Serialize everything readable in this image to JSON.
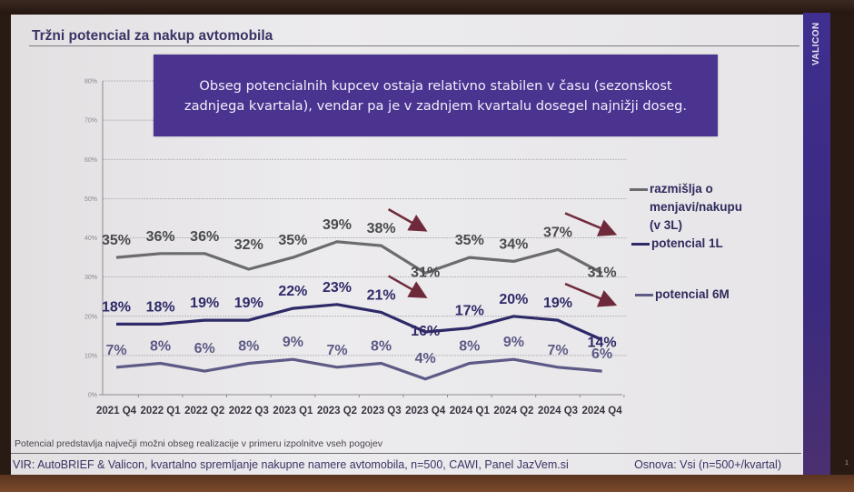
{
  "slide": {
    "title": "Tržni potencial za nakup avtomobila",
    "brand": "VALICON",
    "callout_line1": "Obseg potencialnih kupcev ostaja relativno stabilen v času (sezonskost",
    "callout_line2": "zadnjega kvartala), vendar pa je v zadnjem kvartalu dosegel najnižji doseg.",
    "footnote": "Potencial predstavlja največji možni obseg realizacije v primeru izpolnitve vseh pogojev",
    "source": "VIR: AutoBRIEF & Valicon, kvartalno spremljanje nakupne namere avtomobila, n=500, CAWI, Panel JazVem.si",
    "basis": "Osnova: Vsi (n=500+/kvartal)",
    "page_number": "1",
    "colors": {
      "callout_bg": "#4b3490",
      "brand_bar": "#3f2f8f",
      "title": "#3a3365",
      "arrow": "#6e2a3a"
    }
  },
  "chart_data": {
    "type": "line",
    "title": "Tržni potencial za nakup avtomobila",
    "xlabel": "",
    "ylabel": "",
    "ylim": [
      0,
      80
    ],
    "yticks": [
      "0%",
      "10%",
      "20%",
      "30%",
      "40%",
      "50%",
      "60%",
      "70%",
      "80%"
    ],
    "grid": true,
    "legend_position": "right",
    "categories": [
      "2021 Q4",
      "2022 Q1",
      "2022 Q2",
      "2022 Q3",
      "2023 Q1",
      "2023 Q2",
      "2023 Q3",
      "2023 Q4",
      "2024 Q1",
      "2024 Q2",
      "2024 Q3",
      "2024 Q4"
    ],
    "series": [
      {
        "name": "razmišlja o menjavi/nakupu (v 3L)",
        "legend_lines": [
          "razmišlja o",
          "menjavi/nakupu",
          "(v 3L)"
        ],
        "color": "#6b6b6e",
        "values": [
          35,
          36,
          36,
          32,
          35,
          39,
          38,
          31,
          35,
          34,
          37,
          31
        ],
        "labels": [
          "35%",
          "36%",
          "36%",
          "32%",
          "35%",
          "39%",
          "38%",
          "31%",
          "35%",
          "34%",
          "37%",
          "31%"
        ]
      },
      {
        "name": "potencial 1L",
        "legend_lines": [
          "potencial 1L"
        ],
        "color": "#2e2a68",
        "values": [
          18,
          18,
          19,
          19,
          22,
          23,
          21,
          16,
          17,
          20,
          19,
          14
        ],
        "labels": [
          "18%",
          "18%",
          "19%",
          "19%",
          "22%",
          "23%",
          "21%",
          "16%",
          "17%",
          "20%",
          "19%",
          "14%"
        ]
      },
      {
        "name": "potencial 6M",
        "legend_lines": [
          "potencial 6M"
        ],
        "color": "#5d5a86",
        "values": [
          7,
          8,
          6,
          8,
          9,
          7,
          8,
          4,
          8,
          9,
          7,
          6
        ],
        "labels": [
          "7%",
          "8%",
          "6%",
          "8%",
          "9%",
          "7%",
          "8%",
          "4%",
          "8%",
          "9%",
          "7%",
          "6%"
        ]
      }
    ],
    "annotations": [
      {
        "type": "arrow",
        "from": "2023 Q3",
        "to": "2023 Q4",
        "series": "razmišlja o menjavi/nakupu (v 3L)"
      },
      {
        "type": "arrow",
        "from": "2024 Q3",
        "to": "2024 Q4",
        "series": "razmišlja o menjavi/nakupu (v 3L)"
      },
      {
        "type": "arrow",
        "from": "2023 Q3",
        "to": "2023 Q4",
        "series": "potencial 1L"
      },
      {
        "type": "arrow",
        "from": "2024 Q3",
        "to": "2024 Q4",
        "series": "potencial 1L"
      }
    ]
  }
}
